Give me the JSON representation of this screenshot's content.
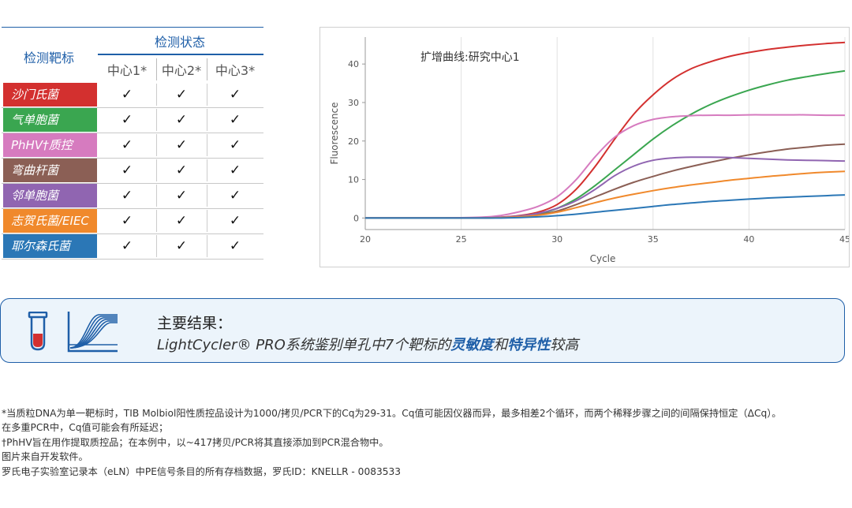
{
  "table": {
    "header_target": "检测靶标",
    "header_status": "检测状态",
    "centers": [
      "中心1*",
      "中心2*",
      "中心3*"
    ],
    "check_mark": "✓",
    "rows": [
      {
        "name": "沙门氏菌",
        "color": "#d3302f"
      },
      {
        "name": "气单胞菌",
        "color": "#3aa650"
      },
      {
        "name": "PhHV†质控",
        "color": "#d67bbf"
      },
      {
        "name": "弯曲杆菌",
        "color": "#8b5f55"
      },
      {
        "name": "邻单胞菌",
        "color": "#9065b1"
      },
      {
        "name": "志贺氏菌/EIEC",
        "color": "#f0892c"
      },
      {
        "name": "耶尔森氏菌",
        "color": "#2b77b6"
      }
    ]
  },
  "chart_data": {
    "type": "line",
    "title": "扩增曲线:研究中心1",
    "xlabel": "Cycle",
    "ylabel": "Fluorescence",
    "xlim": [
      20,
      45
    ],
    "ylim": [
      -3,
      47
    ],
    "xticks": [
      20,
      25,
      30,
      35,
      40,
      45
    ],
    "yticks": [
      0,
      10,
      20,
      30,
      40
    ],
    "grid": "vertical",
    "x": [
      20,
      22,
      24,
      26,
      27,
      28,
      29,
      30,
      31,
      32,
      33,
      34,
      35,
      36,
      37,
      38,
      39,
      40,
      41,
      42,
      43,
      44,
      45
    ],
    "series": [
      {
        "color": "#d3302f",
        "values": [
          0,
          0,
          0,
          0,
          0.2,
          0.6,
          1.5,
          3.5,
          7.5,
          13.5,
          20.5,
          27,
          32,
          36,
          38.8,
          40.6,
          42,
          43,
          43.8,
          44.4,
          44.9,
          45.3,
          45.6
        ]
      },
      {
        "color": "#3aa650",
        "values": [
          0,
          0,
          0,
          0,
          0.1,
          0.4,
          1.0,
          2.5,
          5.0,
          8.5,
          12.5,
          16.5,
          20.5,
          24,
          27,
          29.5,
          31.5,
          33.2,
          34.6,
          35.8,
          36.7,
          37.5,
          38.2
        ]
      },
      {
        "color": "#d67bbf",
        "values": [
          0,
          0,
          0,
          0.2,
          0.6,
          1.6,
          3.0,
          5.5,
          10.0,
          16.0,
          21.0,
          24.0,
          25.6,
          26.3,
          26.6,
          26.7,
          26.7,
          26.8,
          26.8,
          26.8,
          26.8,
          26.7,
          26.7
        ]
      },
      {
        "color": "#8b5f55",
        "values": [
          0,
          0,
          0,
          0,
          0.1,
          0.3,
          0.8,
          1.8,
          3.5,
          5.5,
          7.5,
          9.3,
          10.8,
          12.2,
          13.4,
          14.5,
          15.5,
          16.4,
          17.2,
          17.9,
          18.4,
          18.9,
          19.2
        ]
      },
      {
        "color": "#9065b1",
        "values": [
          0,
          0,
          0,
          0,
          0.2,
          0.5,
          1.2,
          2.5,
          4.5,
          7.5,
          11.0,
          13.5,
          15.0,
          15.6,
          15.8,
          15.8,
          15.7,
          15.5,
          15.3,
          15.1,
          15.0,
          14.9,
          14.8
        ]
      },
      {
        "color": "#f0892c",
        "values": [
          0,
          0,
          0,
          0,
          0.1,
          0.3,
          0.7,
          1.5,
          2.7,
          4.0,
          5.2,
          6.2,
          7.1,
          7.9,
          8.6,
          9.2,
          9.8,
          10.3,
          10.8,
          11.2,
          11.6,
          11.9,
          12.1
        ]
      },
      {
        "color": "#2b77b6",
        "values": [
          0,
          0,
          0,
          0,
          0,
          0.1,
          0.3,
          0.6,
          1.0,
          1.5,
          2.0,
          2.5,
          3.0,
          3.5,
          3.9,
          4.3,
          4.6,
          4.9,
          5.2,
          5.4,
          5.6,
          5.8,
          6.0
        ]
      }
    ]
  },
  "result": {
    "title": "主要结果：",
    "line_prefix": "LightCycler® PRO系统鉴别单孔中7个靶标的",
    "hl1": "灵敏度",
    "mid": "和",
    "hl2": "特异性",
    "suffix": "较高",
    "accent": "#1f5fa8"
  },
  "footnotes": [
    "*当质粒DNA为单一靶标时，TIB Molbiol阳性质控品设计为1000/拷贝/PCR下的Cq为29-31。Cq值可能因仪器而异，最多相差2个循环，而两个稀释步骤之间的间隔保持恒定（ΔCq）。",
    "在多重PCR中，Cq值可能会有所延迟；",
    "†PhHV旨在用作提取质控品；在本例中，以~417拷贝/PCR将其直接添加到PCR混合物中。",
    "图片来自开发软件。",
    "罗氏电子实验室记录本（eLN）中PE信号条目的所有存档数据，罗氏ID：KNELLR - 0083533"
  ]
}
